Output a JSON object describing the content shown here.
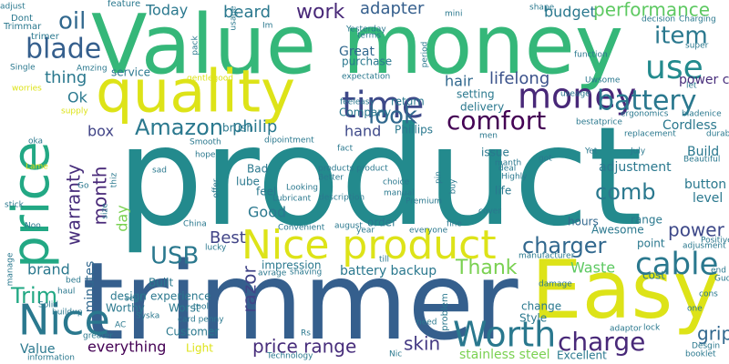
{
  "words": [
    {
      "text": "product",
      "color": "#238a8d"
    },
    {
      "text": "trimmer",
      "color": "#355f8d"
    },
    {
      "text": "Value money",
      "color": "#35b779"
    },
    {
      "text": "Easy",
      "color": "#dde318"
    },
    {
      "text": "quality",
      "color": "#dde318"
    },
    {
      "text": "price",
      "color": "#22a884"
    },
    {
      "text": "Nice product",
      "color": "#dde318"
    },
    {
      "text": "Nice",
      "color": "#2a788e"
    },
    {
      "text": "time",
      "color": "#3e4989"
    },
    {
      "text": "money",
      "color": "#482878"
    },
    {
      "text": "Worth",
      "color": "#2a788e"
    },
    {
      "text": "charge",
      "color": "#482878"
    },
    {
      "text": "battery",
      "color": "#2a788e"
    },
    {
      "text": "use",
      "color": "#238a8d"
    },
    {
      "text": "item",
      "color": "#2a788e"
    },
    {
      "text": "comfort",
      "color": "#440154"
    },
    {
      "text": "look",
      "color": "#31688e"
    },
    {
      "text": "USB",
      "color": "#2a788e"
    },
    {
      "text": "cable",
      "color": "#2a788e"
    },
    {
      "text": "charger",
      "color": "#31688e"
    },
    {
      "text": "comb",
      "color": "#2a788e"
    },
    {
      "text": "blade",
      "color": "#355f8d"
    },
    {
      "text": "oil",
      "color": "#31688e"
    },
    {
      "text": "Amazon",
      "color": "#2a788e"
    },
    {
      "text": "month",
      "color": "#482878"
    },
    {
      "text": "warranty",
      "color": "#472d7b"
    },
    {
      "text": "Thank",
      "color": "#7ad151"
    },
    {
      "text": "price range",
      "color": "#472d7b"
    },
    {
      "text": "Trim",
      "color": "#22a884"
    },
    {
      "text": "razor",
      "color": "#414487"
    },
    {
      "text": "work",
      "color": "#482878"
    },
    {
      "text": "adapter",
      "color": "#355f8d"
    },
    {
      "text": "performance",
      "color": "#5ec962"
    },
    {
      "text": "budget",
      "color": "#2a788e"
    },
    {
      "text": "beard",
      "color": "#2a788e"
    },
    {
      "text": "Today",
      "color": "#2a788e"
    },
    {
      "text": "lifelong",
      "color": "#3b528b"
    },
    {
      "text": "hair",
      "color": "#31688e"
    },
    {
      "text": "thing",
      "color": "#2a788e"
    },
    {
      "text": "hand",
      "color": "#3e4989"
    },
    {
      "text": "philip",
      "color": "#2a788e"
    },
    {
      "text": "Best",
      "color": "#414487"
    },
    {
      "text": "Good",
      "color": "#2a788e"
    },
    {
      "text": "day",
      "color": "#7ad151"
    },
    {
      "text": "minutes",
      "color": "#31688e"
    },
    {
      "text": "brand",
      "color": "#2a788e"
    },
    {
      "text": "box",
      "color": "#414487"
    },
    {
      "text": "Ok",
      "color": "#2a788e"
    },
    {
      "text": "Great",
      "color": "#31688e"
    },
    {
      "text": "power cord",
      "color": "#472d7b"
    },
    {
      "text": "power",
      "color": "#3e4989"
    },
    {
      "text": "grip",
      "color": "#31688e"
    },
    {
      "text": "Waste",
      "color": "#5ec962"
    },
    {
      "text": "skin",
      "color": "#443983"
    },
    {
      "text": "stainless steel",
      "color": "#7ad151"
    },
    {
      "text": "battery backup",
      "color": "#2a788e"
    },
    {
      "text": "everything",
      "color": "#440154"
    },
    {
      "text": "Value",
      "color": "#2a788e"
    },
    {
      "text": "Cordless",
      "color": "#2a788e"
    },
    {
      "text": "adjustment",
      "color": "#2a788e"
    },
    {
      "text": "Build",
      "color": "#2a788e"
    },
    {
      "text": "button",
      "color": "#2a788e"
    },
    {
      "text": "level",
      "color": "#2a788e"
    },
    {
      "text": "range",
      "color": "#2a788e"
    },
    {
      "text": "hours",
      "color": "#31688e"
    },
    {
      "text": "point",
      "color": "#2a788e"
    },
    {
      "text": "Awesome",
      "color": "#2a788e"
    },
    {
      "text": "cost",
      "color": "#2a788e"
    },
    {
      "text": "issue",
      "color": "#2a788e"
    },
    {
      "text": "life",
      "color": "#2a788e"
    },
    {
      "text": "order",
      "color": "#2a788e"
    },
    {
      "text": "impression",
      "color": "#2a788e"
    },
    {
      "text": "feel",
      "color": "#2a788e"
    },
    {
      "text": "Bad",
      "color": "#2a788e"
    },
    {
      "text": "design",
      "color": "#2a788e"
    },
    {
      "text": "experience",
      "color": "#2a788e"
    },
    {
      "text": "lube",
      "color": "#2a788e"
    },
    {
      "text": "brush",
      "color": "#2a788e"
    },
    {
      "text": "delivery",
      "color": "#2a788e"
    },
    {
      "text": "setting",
      "color": "#2a788e"
    },
    {
      "text": "return",
      "color": "#2a788e"
    },
    {
      "text": "Phillips",
      "color": "#2a788e"
    },
    {
      "text": "Company",
      "color": "#2a788e"
    },
    {
      "text": "purchase",
      "color": "#2a788e"
    },
    {
      "text": "service",
      "color": "#2a788e"
    },
    {
      "text": "Excellent",
      "color": "#2a788e"
    },
    {
      "text": "Style",
      "color": "#2a788e"
    },
    {
      "text": "change",
      "color": "#2a788e"
    },
    {
      "text": "problem",
      "color": "#2a788e"
    },
    {
      "text": "Customer",
      "color": "#2a788e"
    },
    {
      "text": "Worthy",
      "color": "#2a788e"
    },
    {
      "text": "Worst",
      "color": "#2a788e"
    },
    {
      "text": "Light",
      "color": "#dde318"
    },
    {
      "text": "Built",
      "color": "#2a788e"
    },
    {
      "text": "feature",
      "color": "#2a788e"
    },
    {
      "text": "Dont",
      "color": "#2a788e"
    },
    {
      "text": "trimer",
      "color": "#2a788e"
    },
    {
      "text": "Trimmar",
      "color": "#2a788e"
    },
    {
      "text": "Single",
      "color": "#2a788e"
    },
    {
      "text": "Amzing",
      "color": "#2a788e"
    },
    {
      "text": "gentlegood",
      "color": "#dde318"
    },
    {
      "text": "worries",
      "color": "#dde318"
    },
    {
      "text": "supply",
      "color": "#dde318"
    },
    {
      "text": "adjust",
      "color": "#2a788e"
    },
    {
      "text": "oka",
      "color": "#2a788e"
    },
    {
      "text": "Lame",
      "color": "#dde318"
    },
    {
      "text": "stick",
      "color": "#2a788e"
    },
    {
      "text": "Noo",
      "color": "#2a788e"
    },
    {
      "text": "manage",
      "color": "#2a788e"
    },
    {
      "text": "Solid",
      "color": "#2a788e"
    },
    {
      "text": "bed",
      "color": "#2a788e"
    },
    {
      "text": "haul",
      "color": "#2a788e"
    },
    {
      "text": "buildup",
      "color": "#2a788e"
    },
    {
      "text": "information",
      "color": "#2a788e"
    },
    {
      "text": "greater",
      "color": "#2a788e"
    },
    {
      "text": "AC",
      "color": "#2a788e"
    },
    {
      "text": "Syska",
      "color": "#2a788e"
    },
    {
      "text": "card penny",
      "color": "#2a788e"
    },
    {
      "text": "Technology",
      "color": "#2a788e"
    },
    {
      "text": "Rs",
      "color": "#2a788e"
    },
    {
      "text": "need",
      "color": "#2a788e"
    },
    {
      "text": "Nic",
      "color": "#2a788e"
    },
    {
      "text": "booklet",
      "color": "#2a788e"
    },
    {
      "text": "Desgin",
      "color": "#2a788e"
    },
    {
      "text": "adaptor",
      "color": "#2a788e"
    },
    {
      "text": "Gud",
      "color": "#2a788e"
    },
    {
      "text": "cons",
      "color": "#2a788e"
    },
    {
      "text": "lock",
      "color": "#2a788e"
    },
    {
      "text": "one",
      "color": "#2a788e"
    },
    {
      "text": "end",
      "color": "#2a788e"
    },
    {
      "text": "Positive",
      "color": "#2a788e"
    },
    {
      "text": "adjusment",
      "color": "#2a788e"
    },
    {
      "text": "Beautiful",
      "color": "#2a788e"
    },
    {
      "text": "durability",
      "color": "#2a788e"
    },
    {
      "text": "replacement",
      "color": "#2a788e"
    },
    {
      "text": "ergonomics",
      "color": "#2a788e"
    },
    {
      "text": "bladenice",
      "color": "#2a788e"
    },
    {
      "text": "let",
      "color": "#2a788e"
    },
    {
      "text": "super",
      "color": "#2a788e"
    },
    {
      "text": "Charging",
      "color": "#2a788e"
    },
    {
      "text": "decision",
      "color": "#2a788e"
    },
    {
      "text": "function",
      "color": "#2a788e"
    },
    {
      "text": "shape",
      "color": "#2a788e"
    },
    {
      "text": "mini",
      "color": "#2a788e"
    },
    {
      "text": "Yesterday",
      "color": "#2a788e"
    },
    {
      "text": "terms",
      "color": "#2a788e"
    },
    {
      "text": "period",
      "color": "#2a788e"
    },
    {
      "text": "usage",
      "color": "#2a788e"
    },
    {
      "text": "pack",
      "color": "#2a788e"
    },
    {
      "text": "Im",
      "color": "#2a788e"
    },
    {
      "text": "feeleasy",
      "color": "#2a788e"
    },
    {
      "text": "men",
      "color": "#2a788e"
    },
    {
      "text": "bestatprice",
      "color": "#2a788e"
    },
    {
      "text": "useage",
      "color": "#2a788e"
    },
    {
      "text": "Uwsome",
      "color": "#2a788e"
    },
    {
      "text": "fact",
      "color": "#2a788e"
    },
    {
      "text": "deal",
      "color": "#2a788e"
    },
    {
      "text": "manth",
      "color": "#2a788e"
    },
    {
      "text": "Highly",
      "color": "#2a788e"
    },
    {
      "text": "got",
      "color": "#2a788e"
    },
    {
      "text": "July",
      "color": "#2a788e"
    },
    {
      "text": "Yet",
      "color": "#2a788e"
    },
    {
      "text": "dipointment",
      "color": "#2a788e"
    },
    {
      "text": "Smooth",
      "color": "#2a788e"
    },
    {
      "text": "hope",
      "color": "#2a788e"
    },
    {
      "text": "sad",
      "color": "#2a788e"
    },
    {
      "text": "thiz",
      "color": "#2a788e"
    },
    {
      "text": "products product",
      "color": "#2a788e"
    },
    {
      "text": "Better",
      "color": "#2a788e"
    },
    {
      "text": "offer",
      "color": "#2a788e"
    },
    {
      "text": "Lubricant",
      "color": "#2a788e"
    },
    {
      "text": "description",
      "color": "#2a788e"
    },
    {
      "text": "Looking",
      "color": "#2a788e"
    },
    {
      "text": "size",
      "color": "#2a788e"
    },
    {
      "text": "Go",
      "color": "#2a788e"
    },
    {
      "text": "pin",
      "color": "#2a788e"
    },
    {
      "text": "buy",
      "color": "#2a788e"
    },
    {
      "text": "choice",
      "color": "#2a788e"
    },
    {
      "text": "manual",
      "color": "#2a788e"
    },
    {
      "text": "Premium",
      "color": "#2a788e"
    },
    {
      "text": "cover",
      "color": "#2a788e"
    },
    {
      "text": "fine",
      "color": "#2a788e"
    },
    {
      "text": "everyone",
      "color": "#2a788e"
    },
    {
      "text": "august",
      "color": "#2a788e"
    },
    {
      "text": "year",
      "color": "#2a788e"
    },
    {
      "text": "Convenient",
      "color": "#2a788e"
    },
    {
      "text": "China",
      "color": "#2a788e"
    },
    {
      "text": "lucky",
      "color": "#2a788e"
    },
    {
      "text": "avrage",
      "color": "#2a788e"
    },
    {
      "text": "shaving",
      "color": "#2a788e"
    },
    {
      "text": "till",
      "color": "#2a788e"
    },
    {
      "text": "manufacturer",
      "color": "#2a788e"
    },
    {
      "text": "damage",
      "color": "#2a788e"
    },
    {
      "text": "sept",
      "color": "#2a788e"
    },
    {
      "text": "tool",
      "color": "#2a788e"
    },
    {
      "text": "expectation",
      "color": "#2a788e"
    },
    {
      "text": "please",
      "color": "#2a788e"
    }
  ]
}
